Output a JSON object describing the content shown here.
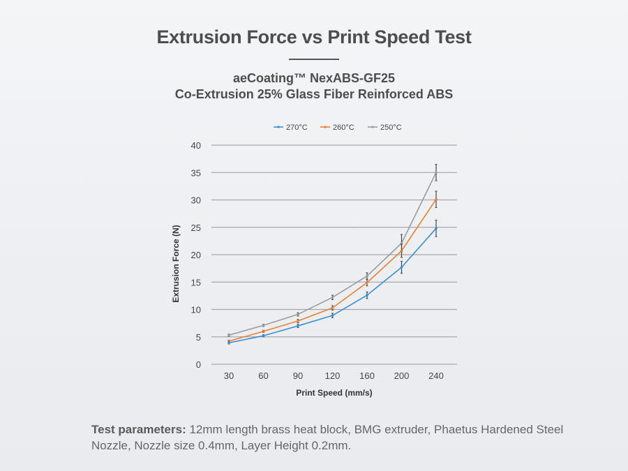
{
  "header": {
    "title": "Extrusion Force vs Print Speed Test",
    "subtitle_1": "aeCoating™ NexABS-GF25",
    "subtitle_2": "Co-Extrusion 25% Glass Fiber Reinforced ABS"
  },
  "footer": {
    "label": "Test parameters:",
    "text": " 12mm length brass heat block, BMG extruder, Phaetus Hardened Steel Nozzle, Nozzle size 0.4mm, Layer Height 0.2mm."
  },
  "chart_data": {
    "type": "line",
    "xlabel": "Print Speed (mm/s)",
    "ylabel": "Extrusion Force (N)",
    "categories": [
      "30",
      "60",
      "90",
      "120",
      "160",
      "200",
      "240"
    ],
    "ylim": [
      0,
      40
    ],
    "yticks": [
      "0",
      "5",
      "10",
      "15",
      "20",
      "25",
      "30",
      "35",
      "40"
    ],
    "grid": true,
    "legend_position": "top",
    "series": [
      {
        "name": "270°C",
        "color": "#3d8fd1",
        "values": [
          3.9,
          5.2,
          7.0,
          8.9,
          12.6,
          17.7,
          24.8
        ],
        "errors": [
          0.2,
          0.2,
          0.3,
          0.4,
          0.6,
          1.1,
          1.5
        ]
      },
      {
        "name": "260°C",
        "color": "#e8803a",
        "values": [
          4.2,
          6.0,
          7.9,
          10.3,
          14.9,
          20.7,
          30.1
        ],
        "errors": [
          0.2,
          0.2,
          0.3,
          0.4,
          0.6,
          1.2,
          1.5
        ]
      },
      {
        "name": "250°C",
        "color": "#9b9b9b",
        "values": [
          5.3,
          7.1,
          9.1,
          12.2,
          16.1,
          22.1,
          35.0
        ],
        "errors": [
          0.2,
          0.2,
          0.3,
          0.4,
          0.6,
          1.6,
          1.5
        ]
      }
    ]
  }
}
